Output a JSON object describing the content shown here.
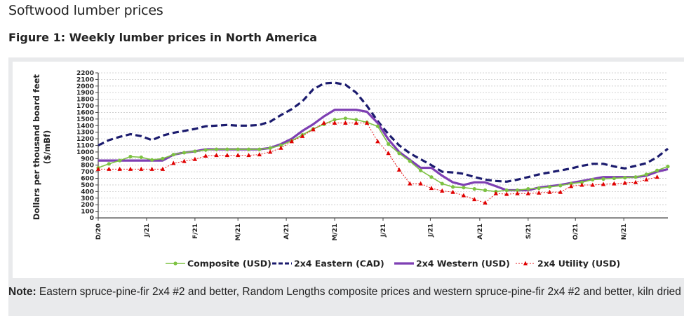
{
  "page": {
    "title": "Softwood lumber prices",
    "figure_title": "Figure 1: Weekly lumber prices in North America",
    "note_label": "Note:",
    "note_text": " Eastern spruce-pine-fir 2x4 #2 and better, Random Lengths composite prices and western spruce-pine-fir 2x4 #2 and better, kiln dried"
  },
  "chart_data": {
    "type": "line",
    "title": "Figure 1: Weekly lumber prices in North America",
    "xlabel": "",
    "ylabel": "Dollars per thousand board feet",
    "ylabel_sub": "($/mBf)",
    "ylim": [
      0,
      2200
    ],
    "yticks": [
      0,
      100,
      200,
      300,
      400,
      500,
      600,
      700,
      800,
      900,
      1000,
      1100,
      1200,
      1300,
      1400,
      1500,
      1600,
      1700,
      1800,
      1900,
      2000,
      2100,
      2200
    ],
    "grid": true,
    "legend_position": "bottom",
    "x_weeks": 53,
    "xticks": [
      {
        "label": "D/20",
        "week": 0
      },
      {
        "label": "J/21",
        "week": 4.5
      },
      {
        "label": "F/21",
        "week": 9
      },
      {
        "label": "M/21",
        "week": 13
      },
      {
        "label": "A/21",
        "week": 17.5
      },
      {
        "label": "M/21",
        "week": 22
      },
      {
        "label": "J/21",
        "week": 26.5
      },
      {
        "label": "J/21",
        "week": 30.9
      },
      {
        "label": "A/21",
        "week": 35.5
      },
      {
        "label": "S/21",
        "week": 40
      },
      {
        "label": "O/21",
        "week": 44.4
      },
      {
        "label": "N/21",
        "week": 48.9
      }
    ],
    "series": [
      {
        "name": "Composite (USD)",
        "color": "#7dc242",
        "style": "solid-dot",
        "values": [
          760,
          820,
          870,
          930,
          920,
          880,
          900,
          960,
          990,
          1010,
          1030,
          1040,
          1040,
          1040,
          1040,
          1040,
          1060,
          1100,
          1170,
          1260,
          1350,
          1420,
          1490,
          1510,
          1490,
          1450,
          1390,
          1120,
          980,
          860,
          720,
          620,
          520,
          470,
          460,
          440,
          420,
          400,
          420,
          420,
          440,
          450,
          470,
          490,
          520,
          540,
          580,
          590,
          600,
          610,
          620,
          660,
          720,
          780
        ]
      },
      {
        "name": "2x4 Eastern (CAD)",
        "color": "#1b1b6e",
        "style": "dashed",
        "values": [
          1100,
          1180,
          1230,
          1270,
          1240,
          1180,
          1250,
          1290,
          1320,
          1350,
          1390,
          1400,
          1410,
          1400,
          1400,
          1410,
          1460,
          1560,
          1650,
          1770,
          1950,
          2040,
          2050,
          2020,
          1900,
          1700,
          1470,
          1270,
          1100,
          980,
          890,
          800,
          700,
          690,
          670,
          620,
          580,
          560,
          550,
          580,
          620,
          660,
          690,
          720,
          750,
          790,
          820,
          820,
          780,
          750,
          790,
          830,
          920,
          1050
        ]
      },
      {
        "name": "2x4 Western (USD)",
        "color": "#7e3fb3",
        "style": "solid",
        "values": [
          870,
          870,
          870,
          870,
          870,
          870,
          870,
          960,
          990,
          1010,
          1040,
          1040,
          1040,
          1040,
          1040,
          1040,
          1060,
          1120,
          1200,
          1320,
          1420,
          1540,
          1640,
          1640,
          1640,
          1610,
          1440,
          1190,
          1000,
          880,
          760,
          760,
          640,
          540,
          500,
          540,
          540,
          480,
          420,
          420,
          420,
          460,
          480,
          500,
          530,
          560,
          590,
          620,
          620,
          620,
          620,
          640,
          700,
          740
        ]
      },
      {
        "name": "2x4 Utility (USD)",
        "color": "#e41a1c",
        "style": "dotted-triangle",
        "values": [
          740,
          740,
          740,
          740,
          740,
          740,
          740,
          830,
          860,
          890,
          940,
          950,
          950,
          950,
          950,
          960,
          1000,
          1060,
          1160,
          1240,
          1340,
          1440,
          1440,
          1440,
          1440,
          1440,
          1160,
          980,
          730,
          520,
          520,
          450,
          410,
          390,
          340,
          280,
          230,
          370,
          360,
          370,
          370,
          380,
          390,
          390,
          480,
          500,
          500,
          510,
          520,
          530,
          540,
          580,
          620
        ]
      }
    ]
  }
}
